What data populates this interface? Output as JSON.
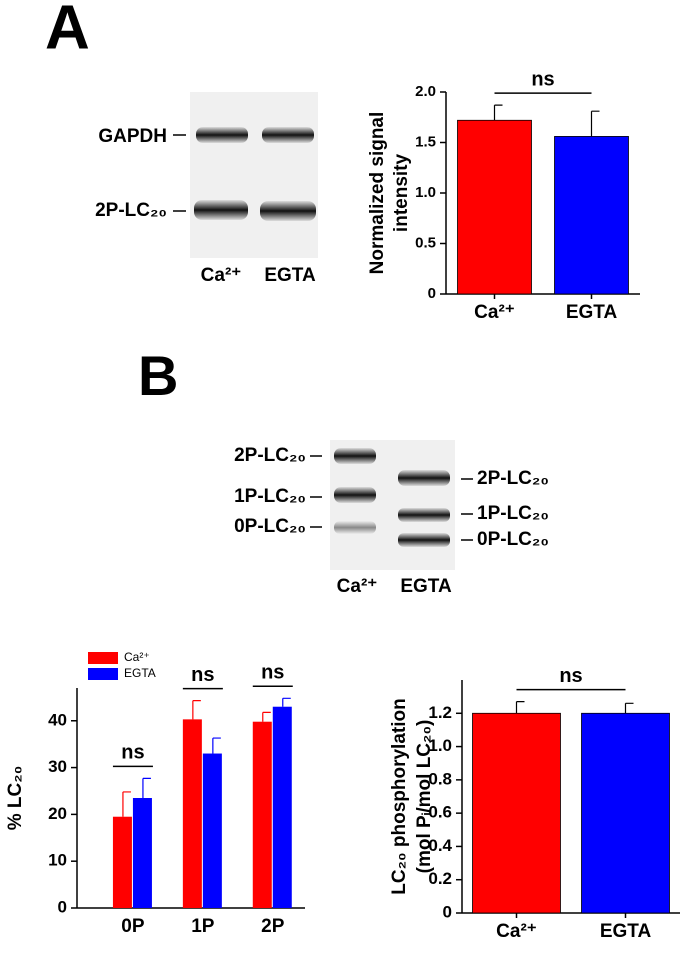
{
  "panel_labels": [
    "A",
    "B"
  ],
  "blots": [
    {
      "left_labels": [
        "GAPDH",
        "2P-LC₂₀"
      ],
      "lanes": [
        "Ca²⁺",
        "EGTA"
      ]
    },
    {
      "left_labels": [
        "2P-LC₂₀",
        "1P-LC₂₀",
        "0P-LC₂₀"
      ],
      "right_labels": [
        "2P-LC₂₀",
        "1P-LC₂₀",
        "0P-LC₂₀"
      ],
      "lanes": [
        "Ca²⁺",
        "EGTA"
      ]
    }
  ],
  "chart_data": [
    {
      "type": "bar",
      "ylabel": [
        "Normalized signal",
        "intensity"
      ],
      "categories": [
        "Ca²⁺",
        "EGTA"
      ],
      "values": [
        1.72,
        1.56
      ],
      "errors": [
        0.15,
        0.25
      ],
      "colors": [
        "#ff0000",
        "#0000ff"
      ],
      "ylim": [
        0,
        2.0
      ],
      "yticks": [
        0,
        {
          "value": 0.5,
          "label": "0.5"
        },
        {
          "value": 1,
          "label": "1.0"
        },
        1.5,
        {
          "value": 2,
          "label": "2.0"
        }
      ],
      "annotation": "ns"
    },
    {
      "type": "grouped-bar",
      "ylabel": [
        "% LC₂₀"
      ],
      "categories": [
        "0P",
        "1P",
        "2P"
      ],
      "series": [
        {
          "name": "Ca²⁺",
          "color": "#ff0000",
          "values": [
            19.5,
            40.3,
            39.8
          ],
          "errors": [
            5.3,
            4.0,
            2.0
          ]
        },
        {
          "name": "EGTA",
          "color": "#0000ff",
          "values": [
            23.5,
            33.0,
            43.0
          ],
          "errors": [
            4.2,
            3.3,
            1.8
          ]
        }
      ],
      "ylim": [
        0,
        47
      ],
      "yticks": [
        0,
        10,
        20,
        30,
        40
      ],
      "legend": "top-left",
      "annotations": [
        "ns",
        "ns",
        "ns"
      ]
    },
    {
      "type": "bar",
      "ylabel": [
        "LC₂₀ phosphorylation",
        "(mol Pᵢ/mol LC₂₀)"
      ],
      "categories": [
        "Ca²⁺",
        "EGTA"
      ],
      "values": [
        1.2,
        1.2
      ],
      "errors": [
        0.07,
        0.06
      ],
      "colors": [
        "#ff0000",
        "#0000ff"
      ],
      "ylim": [
        0,
        1.4
      ],
      "yticks": [
        0,
        0.2,
        0.4,
        0.6,
        0.8,
        {
          "value": 1,
          "label": "1.0"
        },
        1.2
      ],
      "annotation": "ns"
    }
  ]
}
